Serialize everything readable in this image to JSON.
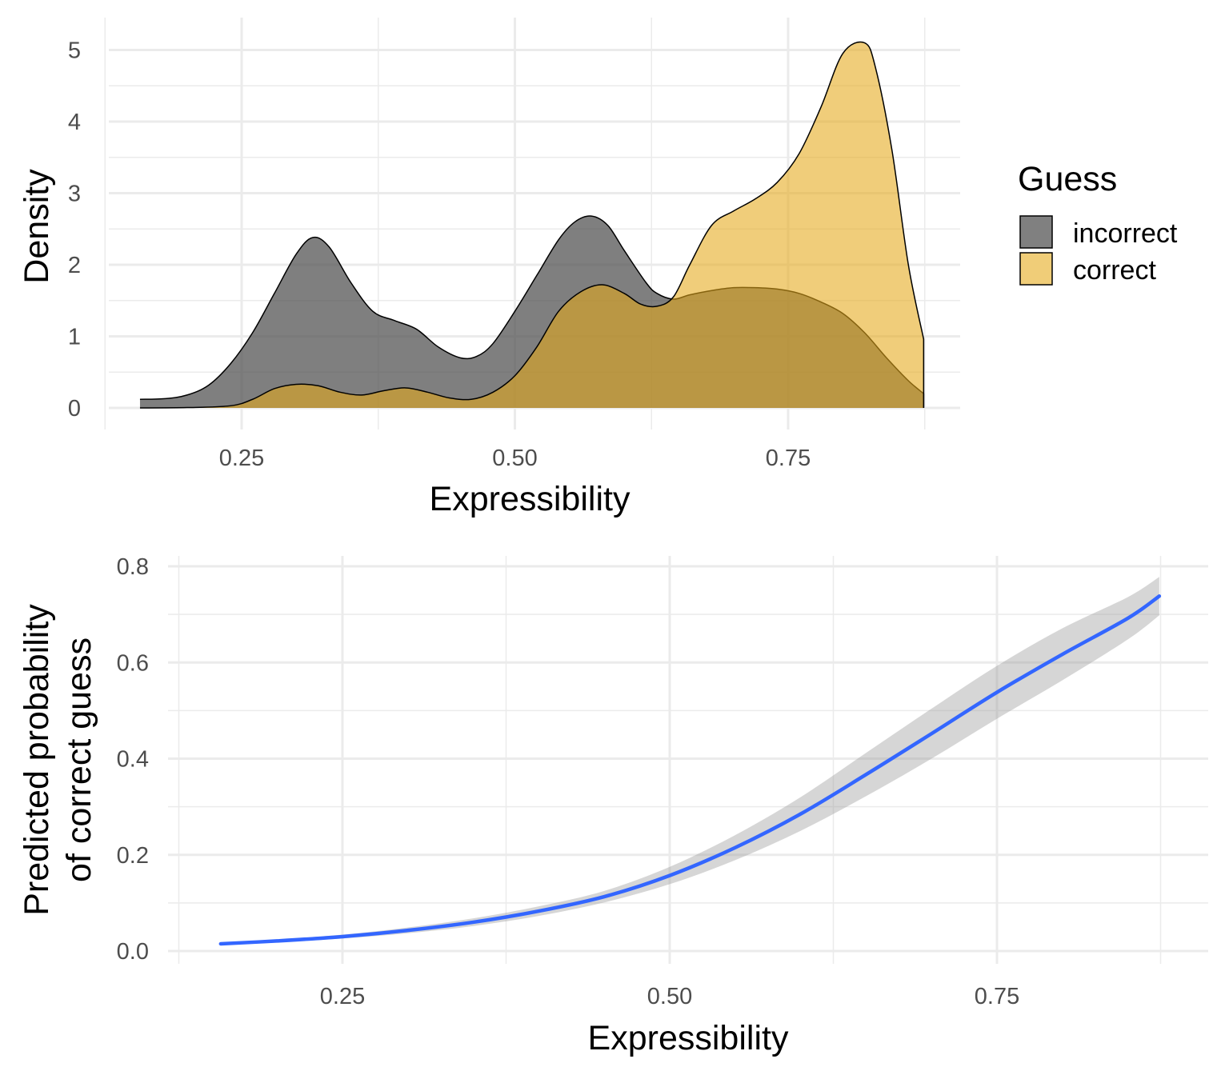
{
  "chart_data": [
    {
      "type": "area",
      "kind": "density",
      "xlabel": "Expressibility",
      "ylabel": "Density",
      "xlim": [
        0.13,
        0.905
      ],
      "ylim": [
        0,
        5.3
      ],
      "xticks": [
        0.25,
        0.5,
        0.75
      ],
      "xtick_labels": [
        "0.25",
        "0.50",
        "0.75"
      ],
      "yticks": [
        0,
        1,
        2,
        3,
        4,
        5
      ],
      "ytick_labels": [
        "0",
        "1",
        "2",
        "3",
        "4",
        "5"
      ],
      "grid": true,
      "legend": {
        "title": "Guess",
        "placement": "right",
        "entries": [
          {
            "label": "incorrect",
            "color": "#808080"
          },
          {
            "label": "correct",
            "color": "#f0cd78"
          }
        ]
      },
      "series": [
        {
          "name": "incorrect",
          "color": "#4d4d4d",
          "opacity": 0.72,
          "x": [
            0.157,
            0.18,
            0.2,
            0.22,
            0.24,
            0.26,
            0.28,
            0.3,
            0.315,
            0.33,
            0.35,
            0.37,
            0.39,
            0.41,
            0.43,
            0.45,
            0.465,
            0.48,
            0.5,
            0.52,
            0.54,
            0.555,
            0.57,
            0.585,
            0.6,
            0.62,
            0.63,
            0.645,
            0.66,
            0.68,
            0.7,
            0.72,
            0.74,
            0.76,
            0.78,
            0.8,
            0.82,
            0.84,
            0.86,
            0.874
          ],
          "y": [
            0.12,
            0.13,
            0.18,
            0.32,
            0.62,
            1.05,
            1.6,
            2.15,
            2.38,
            2.25,
            1.75,
            1.35,
            1.22,
            1.1,
            0.85,
            0.7,
            0.72,
            0.9,
            1.35,
            1.85,
            2.35,
            2.6,
            2.68,
            2.55,
            2.2,
            1.75,
            1.6,
            1.52,
            1.58,
            1.64,
            1.68,
            1.68,
            1.66,
            1.6,
            1.48,
            1.32,
            1.05,
            0.7,
            0.38,
            0.2
          ]
        },
        {
          "name": "correct",
          "color": "#e6a91a",
          "opacity": 0.58,
          "x": [
            0.157,
            0.2,
            0.24,
            0.26,
            0.28,
            0.3,
            0.32,
            0.34,
            0.36,
            0.38,
            0.4,
            0.42,
            0.44,
            0.46,
            0.48,
            0.5,
            0.52,
            0.54,
            0.56,
            0.58,
            0.6,
            0.615,
            0.63,
            0.645,
            0.66,
            0.68,
            0.7,
            0.72,
            0.74,
            0.76,
            0.78,
            0.8,
            0.82,
            0.83,
            0.845,
            0.86,
            0.874
          ],
          "y": [
            0,
            0.005,
            0.03,
            0.12,
            0.27,
            0.33,
            0.31,
            0.22,
            0.18,
            0.24,
            0.28,
            0.22,
            0.14,
            0.12,
            0.22,
            0.45,
            0.85,
            1.35,
            1.62,
            1.72,
            1.6,
            1.45,
            1.42,
            1.55,
            2.0,
            2.55,
            2.75,
            2.92,
            3.15,
            3.55,
            4.2,
            4.95,
            5.1,
            4.75,
            3.6,
            2.0,
            0.96
          ]
        }
      ]
    },
    {
      "type": "line",
      "kind": "fitted-curve-with-ribbon",
      "xlabel": "Expressibility",
      "ylabel": [
        "Predicted probability",
        "of correct guess"
      ],
      "xlim": [
        0.13,
        0.905
      ],
      "ylim": [
        -0.01,
        0.82
      ],
      "xticks": [
        0.25,
        0.5,
        0.75
      ],
      "xtick_labels": [
        "0.25",
        "0.50",
        "0.75"
      ],
      "yticks": [
        0,
        0.2,
        0.4,
        0.6,
        0.8
      ],
      "ytick_labels": [
        "0.0",
        "0.2",
        "0.4",
        "0.6",
        "0.8"
      ],
      "grid": true,
      "series": [
        {
          "line_color": "#3366ff",
          "ribbon_color": "#999999",
          "x": [
            0.157,
            0.2,
            0.25,
            0.3,
            0.35,
            0.4,
            0.45,
            0.5,
            0.55,
            0.6,
            0.65,
            0.7,
            0.75,
            0.8,
            0.85,
            0.874
          ],
          "y": [
            0.015,
            0.021,
            0.03,
            0.043,
            0.06,
            0.083,
            0.113,
            0.157,
            0.215,
            0.285,
            0.367,
            0.452,
            0.538,
            0.617,
            0.692,
            0.738
          ],
          "ymin": [
            0.012,
            0.018,
            0.026,
            0.037,
            0.052,
            0.073,
            0.101,
            0.139,
            0.189,
            0.25,
            0.322,
            0.4,
            0.483,
            0.563,
            0.648,
            0.698
          ],
          "ymax": [
            0.018,
            0.024,
            0.034,
            0.049,
            0.068,
            0.093,
            0.125,
            0.175,
            0.241,
            0.32,
            0.412,
            0.504,
            0.593,
            0.671,
            0.736,
            0.778
          ]
        }
      ]
    }
  ]
}
